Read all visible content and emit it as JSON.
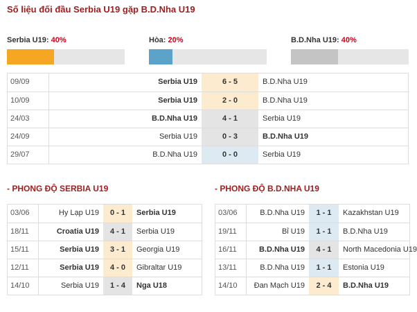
{
  "title": "Số liệu đối đầu Serbia U19 gặp B.D.Nha U19",
  "summary": [
    {
      "label": "Serbia U19:",
      "value": 40,
      "value_label": "40%"
    },
    {
      "label": "Hòa:",
      "value": 20,
      "value_label": "20%"
    },
    {
      "label": "B.D.Nha U19:",
      "value": 40,
      "value_label": "40%"
    }
  ],
  "h2h": {
    "rows": [
      [
        "09/09",
        "Serbia U19",
        "6 - 5",
        "B.D.Nha U19"
      ],
      [
        "10/09",
        "Serbia U19",
        "2 - 0",
        "B.D.Nha U19"
      ],
      [
        "24/03",
        "B.D.Nha U19",
        "4 - 1",
        "Serbia U19"
      ],
      [
        "24/09",
        "Serbia U19",
        "0 - 3",
        "B.D.Nha U19"
      ],
      [
        "29/07",
        "B.D.Nha U19",
        "0 - 0",
        "Serbia U19"
      ]
    ]
  },
  "form_left": {
    "title": "- PHONG ĐỘ SERBIA U19",
    "rows": [
      [
        "03/06",
        "Hy Lạp U19",
        "0 - 1",
        "Serbia U19"
      ],
      [
        "18/11",
        "Croatia U19",
        "4 - 1",
        "Serbia U19"
      ],
      [
        "15/11",
        "Serbia U19",
        "3 - 1",
        "Georgia U19"
      ],
      [
        "12/11",
        "Serbia U19",
        "4 - 0",
        "Gibraltar U19"
      ],
      [
        "14/10",
        "Serbia U19",
        "1 - 4",
        "Nga U18"
      ]
    ]
  },
  "form_right": {
    "title": "- PHONG ĐỘ B.D.NHA U19",
    "rows": [
      [
        "03/06",
        "B.D.Nha U19",
        "1 - 1",
        "Kazakhstan U19"
      ],
      [
        "19/11",
        "Bỉ U19",
        "1 - 1",
        "B.D.Nha U19"
      ],
      [
        "16/11",
        "B.D.Nha U19",
        "4 - 1",
        "North Macedonia U19"
      ],
      [
        "13/11",
        "B.D.Nha U19",
        "1 - 1",
        "Estonia U19"
      ],
      [
        "14/10",
        "Đan Mạch U19",
        "2 - 4",
        "B.D.Nha U19"
      ]
    ]
  }
}
